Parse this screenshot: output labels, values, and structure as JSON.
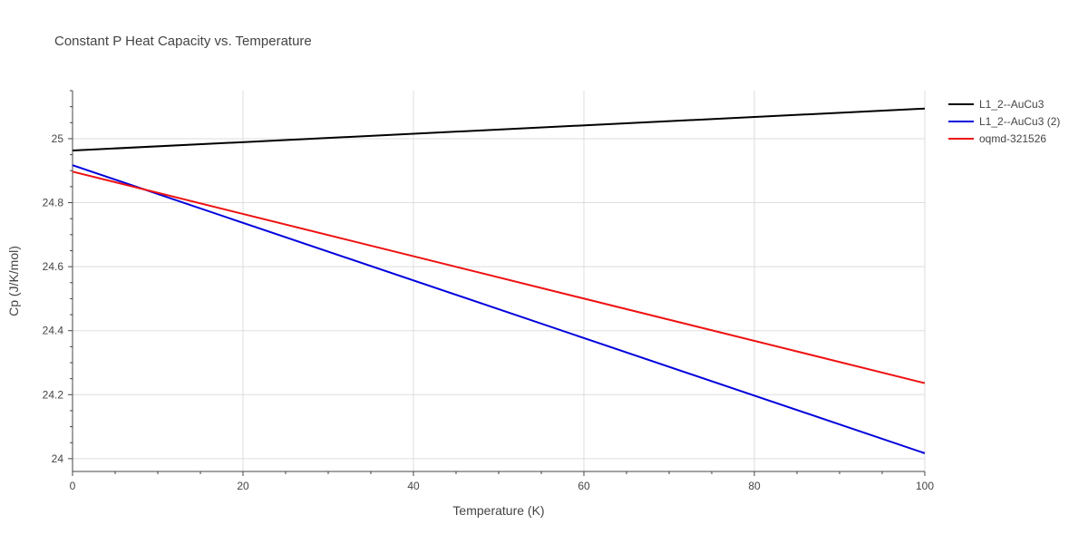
{
  "chart_data": {
    "type": "line",
    "title": "Constant P Heat Capacity vs. Temperature",
    "xlabel": "Temperature (K)",
    "ylabel": "Cp (J/K/mol)",
    "xlim": [
      0,
      100
    ],
    "ylim": [
      23.96,
      25.15
    ],
    "x_ticks": [
      0,
      20,
      40,
      60,
      80,
      100
    ],
    "y_ticks": [
      24,
      24.2,
      24.4,
      24.6,
      24.8,
      25
    ],
    "x_tick_labels": [
      "0",
      "20",
      "40",
      "60",
      "80",
      "100"
    ],
    "y_tick_labels": [
      "24",
      "24.2",
      "24.4",
      "24.6",
      "24.8",
      "25"
    ],
    "grid": true,
    "legend_position": "top-right",
    "series": [
      {
        "name": "L1_2--AuCu3",
        "color": "#000000",
        "x": [
          0,
          100
        ],
        "y": [
          24.963,
          25.094
        ]
      },
      {
        "name": "L1_2--AuCu3 (2)",
        "color": "#0000dd",
        "x": [
          0,
          100
        ],
        "y": [
          24.917,
          24.017
        ]
      },
      {
        "name": "oqmd-321526",
        "color": "#ee1111",
        "x": [
          0,
          100
        ],
        "y": [
          24.897,
          24.236
        ]
      }
    ]
  }
}
